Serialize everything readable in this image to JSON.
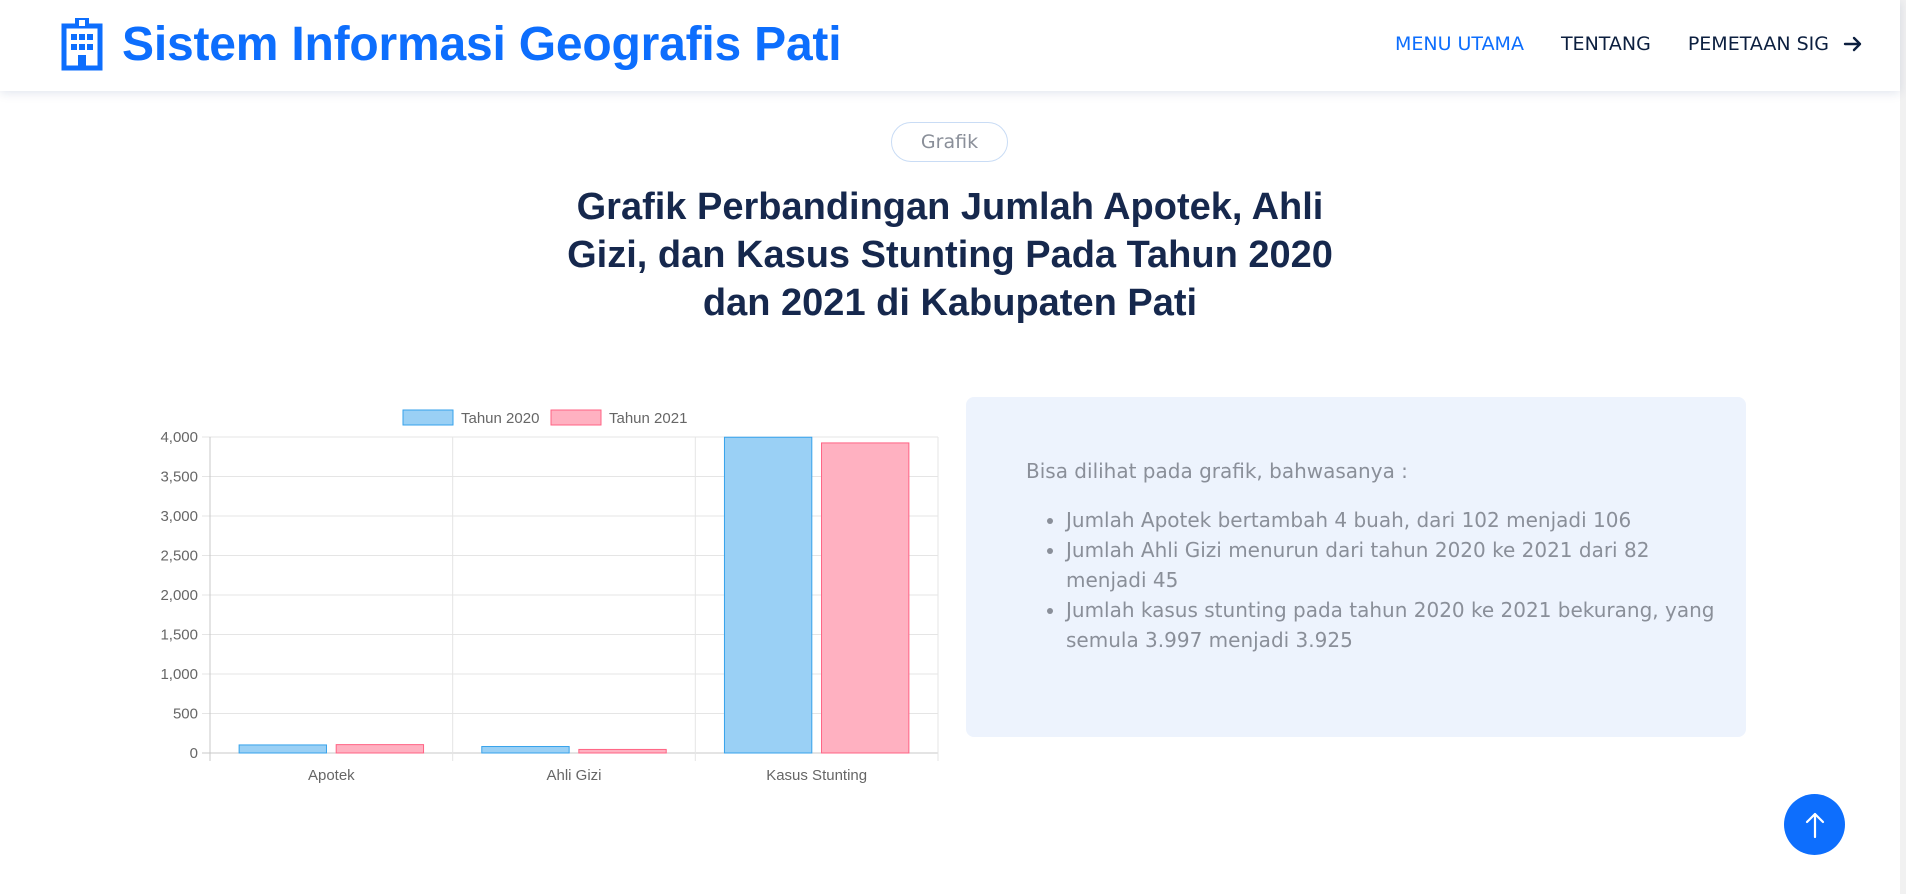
{
  "header": {
    "brand": "Sistem Informasi Geografis Pati",
    "brand_icon": "building-icon",
    "nav": [
      {
        "label": "MENU UTAMA",
        "active": true
      },
      {
        "label": "TENTANG",
        "active": false
      },
      {
        "label": "PEMETAAN SIG",
        "active": false
      }
    ],
    "nav_arrow_icon": "arrow-right-icon",
    "accent_color": "#0d6efd"
  },
  "section": {
    "badge": "Grafik",
    "title": "Grafik Perbandingan Jumlah Apotek, Ahli Gizi, dan Kasus Stunting Pada Tahun 2020 dan 2021 di Kabupaten Pati"
  },
  "chart_data": {
    "type": "bar",
    "categories": [
      "Apotek",
      "Ahli Gizi",
      "Kasus Stunting"
    ],
    "series": [
      {
        "name": "Tahun 2020",
        "values": [
          102,
          82,
          3997
        ],
        "color": "#9ad0f5",
        "border": "#36a2eb"
      },
      {
        "name": "Tahun 2021",
        "values": [
          106,
          45,
          3925
        ],
        "color": "#ffb1c1",
        "border": "#ff6384"
      }
    ],
    "ylim": [
      0,
      4000
    ],
    "yticks": [
      "0",
      "500",
      "1,000",
      "1,500",
      "2,000",
      "2,500",
      "3,000",
      "3,500",
      "4,000"
    ],
    "grid": true,
    "legend": "top"
  },
  "card": {
    "intro": "Bisa dilihat pada grafik, bahwasanya :",
    "items": [
      "Jumlah Apotek bertambah 4 buah, dari 102 menjadi 106",
      "Jumlah Ahli Gizi menurun dari tahun 2020 ke 2021 dari 82 menjadi 45",
      "Jumlah kasus stunting pada tahun 2020 ke 2021 bekurang, yang semula 3.997 menjadi 3.925"
    ]
  },
  "back_to_top_icon": "arrow-up-icon"
}
